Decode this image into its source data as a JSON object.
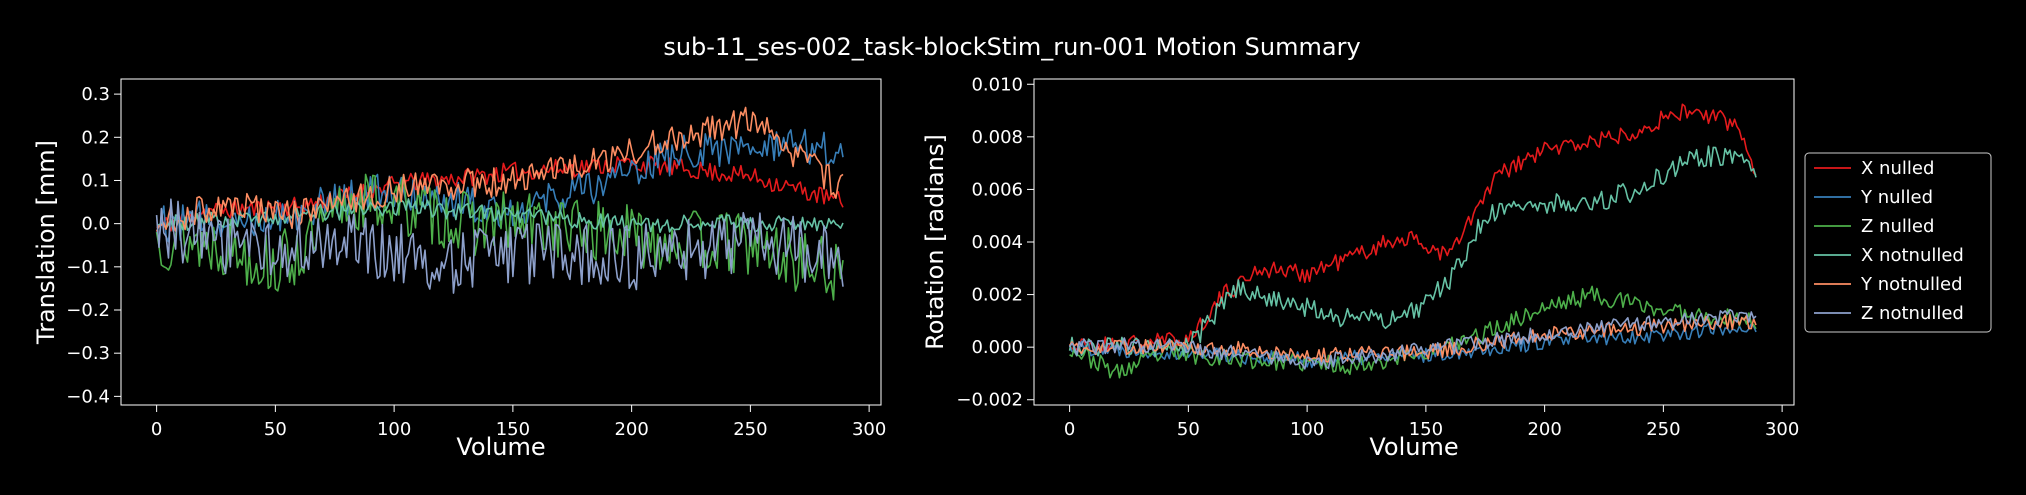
{
  "figure": {
    "title": "sub-11_ses-002_task-blockStim_run-001 Motion Summary",
    "background": "#000000",
    "foreground": "#ffffff"
  },
  "chart_data": [
    {
      "type": "line",
      "xlabel": "Volume",
      "ylabel": "Translation [mm]",
      "xlim": [
        -15,
        305
      ],
      "ylim": [
        -0.42,
        0.335
      ],
      "xticks": [
        0,
        50,
        100,
        150,
        200,
        250,
        300
      ],
      "yticks": [
        -0.4,
        -0.3,
        -0.2,
        -0.1,
        0.0,
        0.1,
        0.2,
        0.3
      ],
      "ytick_labels": [
        "−0.4",
        "−0.3",
        "−0.2",
        "−0.1",
        "0.0",
        "0.1",
        "0.2",
        "0.3"
      ],
      "n_volumes": 290,
      "series": [
        {
          "name": "X nulled",
          "color": "#e41a1c",
          "noise": 0.022,
          "seed": 11,
          "keypoints": [
            [
              0,
              -0.01
            ],
            [
              20,
              0.03
            ],
            [
              60,
              0.04
            ],
            [
              100,
              0.09
            ],
            [
              150,
              0.12
            ],
            [
              200,
              0.14
            ],
            [
              250,
              0.11
            ],
            [
              289,
              0.05
            ]
          ]
        },
        {
          "name": "Y nulled",
          "color": "#377eb8",
          "noise": 0.045,
          "seed": 12,
          "keypoints": [
            [
              0,
              0.0
            ],
            [
              50,
              0.02
            ],
            [
              100,
              0.08
            ],
            [
              150,
              0.03
            ],
            [
              200,
              0.12
            ],
            [
              230,
              0.18
            ],
            [
              260,
              0.17
            ],
            [
              289,
              0.18
            ]
          ]
        },
        {
          "name": "Z nulled",
          "color": "#4daf4a",
          "noise": 0.075,
          "seed": 13,
          "keypoints": [
            [
              0,
              -0.03
            ],
            [
              30,
              -0.05
            ],
            [
              50,
              -0.1
            ],
            [
              65,
              -0.05
            ],
            [
              80,
              0.05
            ],
            [
              100,
              0.05
            ],
            [
              130,
              0.0
            ],
            [
              160,
              0.0
            ],
            [
              200,
              -0.03
            ],
            [
              250,
              -0.05
            ],
            [
              289,
              -0.12
            ]
          ]
        },
        {
          "name": "X notnulled",
          "color": "#66c2a5",
          "noise": 0.02,
          "seed": 14,
          "keypoints": [
            [
              0,
              0.0
            ],
            [
              60,
              0.02
            ],
            [
              100,
              0.04
            ],
            [
              150,
              0.02
            ],
            [
              200,
              0.0
            ],
            [
              250,
              0.0
            ],
            [
              289,
              0.0
            ]
          ]
        },
        {
          "name": "Y notnulled",
          "color": "#fc8d62",
          "noise": 0.035,
          "seed": 15,
          "keypoints": [
            [
              0,
              0.0
            ],
            [
              30,
              0.05
            ],
            [
              60,
              0.02
            ],
            [
              100,
              0.08
            ],
            [
              150,
              0.1
            ],
            [
              190,
              0.15
            ],
            [
              220,
              0.2
            ],
            [
              250,
              0.24
            ],
            [
              265,
              0.18
            ],
            [
              289,
              0.08
            ]
          ]
        },
        {
          "name": "Z notnulled",
          "color": "#8da0cb",
          "noise": 0.075,
          "seed": 16,
          "keypoints": [
            [
              0,
              0.0
            ],
            [
              40,
              -0.06
            ],
            [
              80,
              -0.05
            ],
            [
              120,
              -0.09
            ],
            [
              160,
              -0.07
            ],
            [
              200,
              -0.08
            ],
            [
              250,
              -0.04
            ],
            [
              289,
              -0.08
            ]
          ]
        }
      ]
    },
    {
      "type": "line",
      "xlabel": "Volume",
      "ylabel": "Rotation [radians]",
      "xlim": [
        -15,
        305
      ],
      "ylim": [
        -0.0022,
        0.0102
      ],
      "xticks": [
        0,
        50,
        100,
        150,
        200,
        250,
        300
      ],
      "yticks": [
        -0.002,
        0.0,
        0.002,
        0.004,
        0.006,
        0.008,
        0.01
      ],
      "ytick_labels": [
        "−0.002",
        "0.000",
        "0.002",
        "0.004",
        "0.006",
        "0.008",
        "0.010"
      ],
      "n_volumes": 290,
      "legend": {
        "placement": "right-outside"
      },
      "series": [
        {
          "name": "X nulled",
          "color": "#e41a1c",
          "noise": 0.00035,
          "seed": 21,
          "keypoints": [
            [
              0,
              0.0
            ],
            [
              50,
              0.0003
            ],
            [
              65,
              0.002
            ],
            [
              80,
              0.003
            ],
            [
              100,
              0.0028
            ],
            [
              120,
              0.0035
            ],
            [
              140,
              0.0042
            ],
            [
              160,
              0.0035
            ],
            [
              180,
              0.0065
            ],
            [
              200,
              0.0075
            ],
            [
              230,
              0.008
            ],
            [
              260,
              0.009
            ],
            [
              280,
              0.0085
            ],
            [
              289,
              0.0068
            ]
          ]
        },
        {
          "name": "Y nulled",
          "color": "#377eb8",
          "noise": 0.0003,
          "seed": 22,
          "keypoints": [
            [
              0,
              0.0
            ],
            [
              50,
              -0.0002
            ],
            [
              100,
              -0.0005
            ],
            [
              150,
              -0.0003
            ],
            [
              200,
              0.0002
            ],
            [
              250,
              0.0005
            ],
            [
              289,
              0.0008
            ]
          ]
        },
        {
          "name": "Z nulled",
          "color": "#4daf4a",
          "noise": 0.00035,
          "seed": 23,
          "keypoints": [
            [
              0,
              0.0
            ],
            [
              20,
              -0.001
            ],
            [
              40,
              -0.0002
            ],
            [
              80,
              -0.0005
            ],
            [
              120,
              -0.0007
            ],
            [
              160,
              0.0
            ],
            [
              200,
              0.0015
            ],
            [
              220,
              0.002
            ],
            [
              250,
              0.0014
            ],
            [
              289,
              0.001
            ]
          ]
        },
        {
          "name": "X notnulled",
          "color": "#66c2a5",
          "noise": 0.0004,
          "seed": 24,
          "keypoints": [
            [
              0,
              0.0
            ],
            [
              50,
              0.0
            ],
            [
              70,
              0.0022
            ],
            [
              90,
              0.0018
            ],
            [
              110,
              0.0012
            ],
            [
              140,
              0.001
            ],
            [
              160,
              0.0025
            ],
            [
              175,
              0.005
            ],
            [
              200,
              0.0055
            ],
            [
              220,
              0.0055
            ],
            [
              240,
              0.006
            ],
            [
              260,
              0.0072
            ],
            [
              280,
              0.0073
            ],
            [
              289,
              0.0065
            ]
          ]
        },
        {
          "name": "Y notnulled",
          "color": "#fc8d62",
          "noise": 0.0003,
          "seed": 25,
          "keypoints": [
            [
              0,
              0.0
            ],
            [
              60,
              0.0
            ],
            [
              100,
              -0.0003
            ],
            [
              150,
              -0.0002
            ],
            [
              200,
              0.0005
            ],
            [
              250,
              0.0008
            ],
            [
              289,
              0.001
            ]
          ]
        },
        {
          "name": "Z notnulled",
          "color": "#8da0cb",
          "noise": 0.0003,
          "seed": 26,
          "keypoints": [
            [
              0,
              0.0
            ],
            [
              40,
              0.0001
            ],
            [
              100,
              -0.0006
            ],
            [
              150,
              -0.0001
            ],
            [
              200,
              0.0005
            ],
            [
              250,
              0.001
            ],
            [
              289,
              0.0012
            ]
          ]
        }
      ]
    }
  ]
}
